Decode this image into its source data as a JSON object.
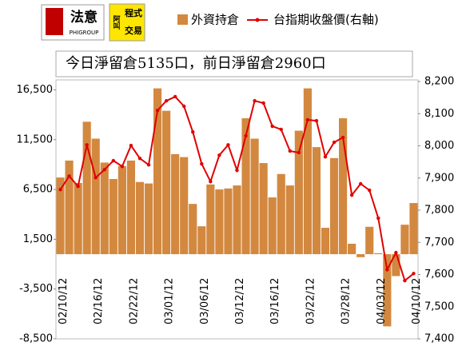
{
  "logos": {
    "brand": "法意",
    "brand_en": "PHIGROUP",
    "badge_top": "程式",
    "badge_bottom": "阿叫",
    "badge_side": "交易"
  },
  "chart_data": {
    "type": "bar",
    "annotation": "今日淨留倉5135口，前日淨留倉2960口",
    "categories": [
      "02/10/12",
      null,
      null,
      null,
      "02/16/12",
      null,
      null,
      null,
      "02/22/12",
      null,
      null,
      null,
      "03/01/12",
      null,
      null,
      null,
      "03/06/12",
      null,
      null,
      null,
      "03/12/12",
      null,
      null,
      null,
      "03/16/12",
      null,
      null,
      null,
      "03/22/12",
      null,
      null,
      null,
      "03/28/12",
      null,
      null,
      null,
      "04/03/12",
      null,
      null,
      null,
      "04/10/12"
    ],
    "series": [
      {
        "name": "外資持倉",
        "type": "bar",
        "color": "#d3883f",
        "values": [
          7700,
          9400,
          7150,
          13300,
          11600,
          9200,
          7550,
          8850,
          9400,
          7250,
          7100,
          16650,
          14400,
          10050,
          9750,
          5050,
          2800,
          7000,
          6500,
          6600,
          6900,
          13650,
          11600,
          9150,
          5700,
          8050,
          6900,
          12400,
          16650,
          10750,
          2650,
          9650,
          13650,
          1050,
          -300,
          2750,
          100,
          -7250,
          -2200,
          2960,
          5135
        ]
      },
      {
        "name": "台指期收盤價(右軸)",
        "type": "line",
        "axis": "y2",
        "color": "#e00000",
        "values": [
          7864,
          7906,
          7874,
          8003,
          7901,
          7926,
          7954,
          7936,
          8001,
          7961,
          7941,
          8110,
          8140,
          8153,
          8123,
          8043,
          7944,
          7889,
          7971,
          8003,
          7924,
          8031,
          8140,
          8133,
          8061,
          8051,
          7984,
          7979,
          8081,
          8078,
          7966,
          8011,
          8026,
          7847,
          7882,
          7862,
          7775,
          7615,
          7668,
          7581,
          7603
        ]
      }
    ],
    "ylim": [
      -8500,
      17500
    ],
    "yticks": [
      {
        "value": -8500,
        "label": "-8,500"
      },
      {
        "value": -3500,
        "label": "-3,500"
      },
      {
        "value": 1500,
        "label": "1,500"
      },
      {
        "value": 6500,
        "label": "6,500"
      },
      {
        "value": 11500,
        "label": "11,500"
      },
      {
        "value": 16500,
        "label": "16,500"
      }
    ],
    "y2lim": [
      7400,
      8205
    ],
    "y2ticks": [
      {
        "value": 7400,
        "label": "7,400"
      },
      {
        "value": 7500,
        "label": "7,500"
      },
      {
        "value": 7600,
        "label": "7,600"
      },
      {
        "value": 7700,
        "label": "7,700"
      },
      {
        "value": 7800,
        "label": "7,800"
      },
      {
        "value": 7900,
        "label": "7,900"
      },
      {
        "value": 8000,
        "label": "8,000"
      },
      {
        "value": 8100,
        "label": "8,100"
      },
      {
        "value": 8200,
        "label": "8,200"
      }
    ],
    "grid": false,
    "legend": "top"
  }
}
